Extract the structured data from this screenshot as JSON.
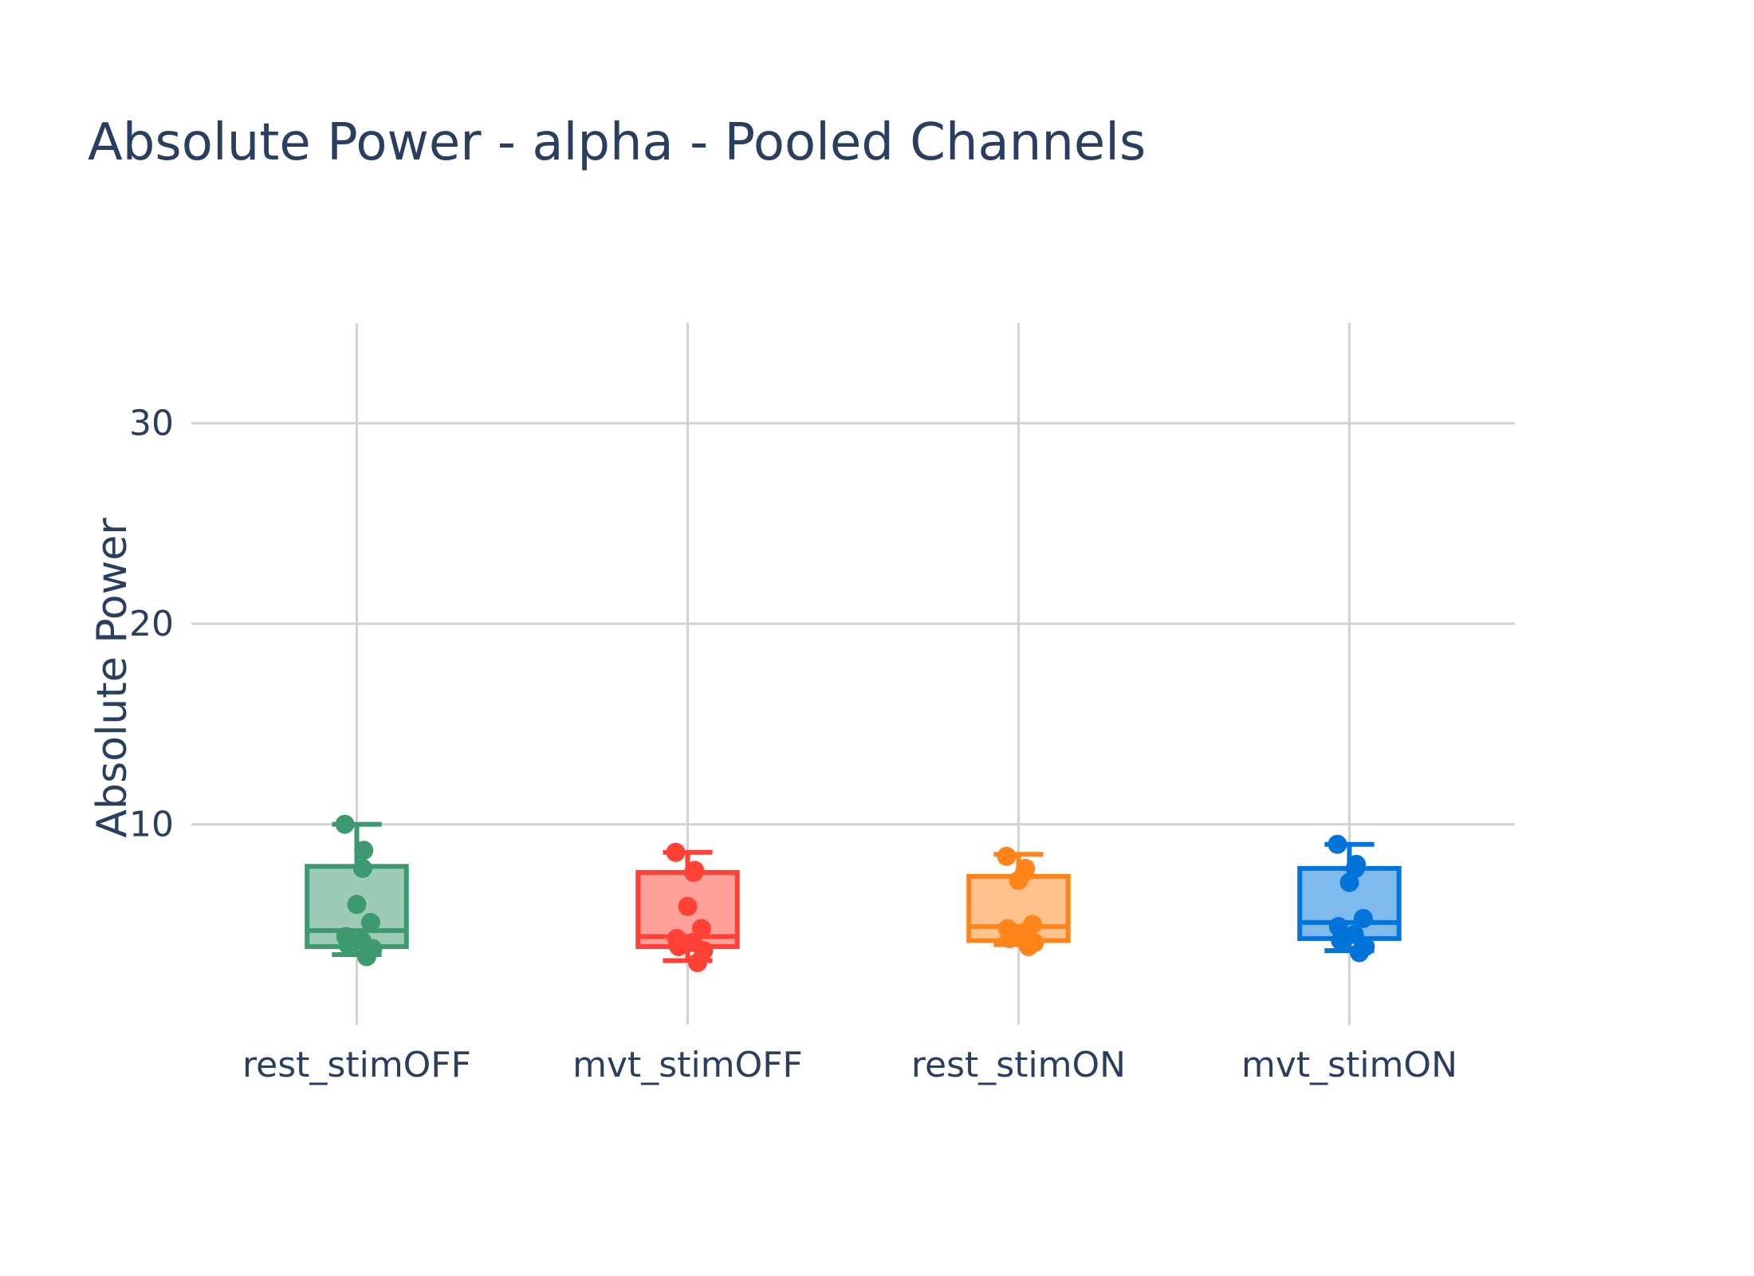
{
  "chart_data": {
    "type": "box",
    "title": "Absolute Power - alpha - Pooled Channels",
    "xlabel": "",
    "ylabel": "Absolute Power",
    "ylim": [
      0,
      35
    ],
    "yticks": [
      10,
      20,
      30
    ],
    "grid": true,
    "categories": [
      "rest_stimOFF",
      "mvt_stimOFF",
      "rest_stimON",
      "mvt_stimON"
    ],
    "series": [
      {
        "category": "rest_stimOFF",
        "color": "#3d9970",
        "fill": "#9ecbb7",
        "min": 3.5,
        "q1": 3.9,
        "median": 4.7,
        "q3": 7.9,
        "max": 10.0,
        "points": [
          10.0,
          8.7,
          7.8,
          6.0,
          5.1,
          4.4,
          4.2,
          4.0,
          3.8,
          3.4
        ]
      },
      {
        "category": "mvt_stimOFF",
        "color": "#ff4136",
        "fill": "#ffa09a",
        "min": 3.2,
        "q1": 3.9,
        "median": 4.4,
        "q3": 7.6,
        "max": 8.6,
        "points": [
          8.6,
          7.7,
          7.6,
          5.9,
          4.8,
          4.3,
          4.1,
          3.9,
          3.7,
          3.1
        ]
      },
      {
        "category": "rest_stimON",
        "color": "#ff851b",
        "fill": "#ffc28d",
        "min": 4.0,
        "q1": 4.2,
        "median": 4.9,
        "q3": 7.4,
        "max": 8.5,
        "points": [
          8.4,
          7.8,
          7.6,
          7.2,
          5.0,
          4.8,
          4.6,
          4.3,
          4.1,
          3.9
        ]
      },
      {
        "category": "mvt_stimON",
        "color": "#0074d9",
        "fill": "#80b9ec",
        "min": 3.7,
        "q1": 4.3,
        "median": 5.1,
        "q3": 7.8,
        "max": 9.0,
        "points": [
          9.0,
          8.0,
          7.8,
          7.1,
          5.3,
          4.9,
          4.5,
          4.2,
          3.9,
          3.6
        ]
      }
    ]
  }
}
